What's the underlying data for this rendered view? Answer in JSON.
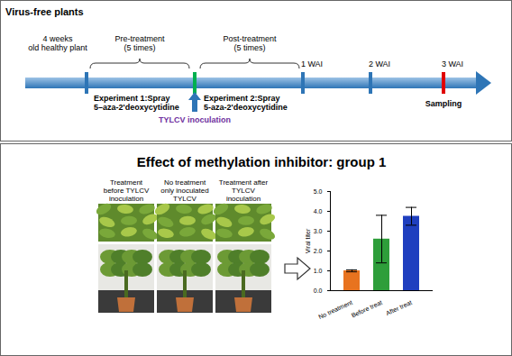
{
  "header": {
    "title": "Virus-free plants"
  },
  "timeline": {
    "start": [
      "4 weeks",
      "old healthy plant"
    ],
    "pre_treatment": [
      "Pre-treatment",
      "(5 times)"
    ],
    "post_treatment": [
      "Post-treatment",
      "(5 times)"
    ],
    "weeks": [
      "1 WAI",
      "2 WAI",
      "3 WAI"
    ],
    "experiment_1": [
      "Experiment 1:Spray",
      "5–aza-2'deoxycytidine"
    ],
    "experiment_2": [
      "Experiment 2:Spray",
      "5-aza-2'deoxycytidine"
    ],
    "inoculation": "TYLCV inoculation",
    "sampling": "Sampling"
  },
  "figure_title": "Effect of methylation inhibitor: group 1",
  "photo_labels": [
    [
      "Treatment",
      "before TYLCV",
      "inoculation"
    ],
    [
      "No treatment",
      "only inoculated",
      "TYLCV"
    ],
    [
      "Treatment  after",
      "TYLCV",
      "inoculation"
    ]
  ],
  "chart_data": {
    "type": "bar",
    "y_label": "Viral titer",
    "categories": [
      "No treatment",
      "Before treat",
      "After treat"
    ],
    "values": [
      1.0,
      2.6,
      3.75
    ],
    "errors": [
      0.05,
      1.2,
      0.45
    ],
    "colors": [
      "#e8731f",
      "#2e9e3a",
      "#1f3fbf"
    ],
    "ylim": [
      0,
      5
    ],
    "yticks": [
      0,
      1,
      2,
      3,
      4,
      5
    ],
    "grid": false
  }
}
